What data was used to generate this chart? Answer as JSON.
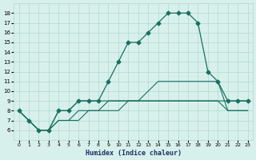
{
  "xlabel": "Humidex (Indice chaleur)",
  "x_values": [
    0,
    1,
    2,
    3,
    4,
    5,
    6,
    7,
    8,
    9,
    10,
    11,
    12,
    13,
    14,
    15,
    16,
    17,
    18,
    19,
    20,
    21,
    22,
    23
  ],
  "series1": [
    8,
    7,
    6,
    6,
    8,
    8,
    9,
    9,
    9,
    11,
    13,
    15,
    15,
    16,
    17,
    18,
    18,
    18,
    17,
    12,
    11,
    9,
    9,
    9
  ],
  "series2": [
    8,
    7,
    6,
    6,
    8,
    8,
    9,
    9,
    9,
    9,
    9,
    9,
    9,
    9,
    9,
    9,
    9,
    9,
    9,
    9,
    9,
    9,
    9,
    9
  ],
  "series3": [
    8,
    7,
    6,
    6,
    7,
    7,
    7,
    8,
    8,
    8,
    8,
    9,
    9,
    10,
    11,
    11,
    11,
    11,
    11,
    11,
    11,
    8,
    8,
    8
  ],
  "series4": [
    8,
    7,
    6,
    6,
    7,
    7,
    8,
    8,
    8,
    9,
    9,
    9,
    9,
    9,
    9,
    9,
    9,
    9,
    9,
    9,
    9,
    8,
    8,
    8
  ],
  "line_color": "#1a7060",
  "bg_color": "#d8f0ec",
  "grid_color": "#b0d8d0",
  "ylim": [
    5,
    19
  ],
  "yticks": [
    6,
    7,
    8,
    9,
    10,
    11,
    12,
    13,
    14,
    15,
    16,
    17,
    18
  ],
  "xlim": [
    -0.5,
    23.5
  ]
}
